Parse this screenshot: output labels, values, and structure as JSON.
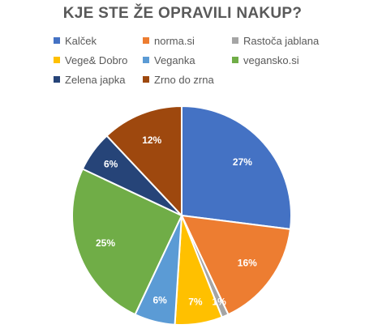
{
  "chart_data": {
    "type": "pie",
    "title": "KJE STE ŽE OPRAVILI NAKUP?",
    "legend_position": "top",
    "slices": [
      {
        "label": "Kalček",
        "value": 27,
        "data_label": "27%",
        "color": "#4472C4"
      },
      {
        "label": "norma.si",
        "value": 16,
        "data_label": "16%",
        "color": "#ED7D31"
      },
      {
        "label": "Rastoča jablana",
        "value": 1,
        "data_label": "1%",
        "color": "#A5A5A5"
      },
      {
        "label": "Vege& Dobro",
        "value": 7,
        "data_label": "7%",
        "color": "#FFC000"
      },
      {
        "label": "Veganka",
        "value": 6,
        "data_label": "6%",
        "color": "#5B9BD5"
      },
      {
        "label": "vegansko.si",
        "value": 25,
        "data_label": "25%",
        "color": "#70AD47"
      },
      {
        "label": "Zelena japka",
        "value": 6,
        "data_label": "6%",
        "color": "#264478"
      },
      {
        "label": "Zrno do zrna",
        "value": 12,
        "data_label": "12%",
        "color": "#9E480E"
      }
    ]
  }
}
